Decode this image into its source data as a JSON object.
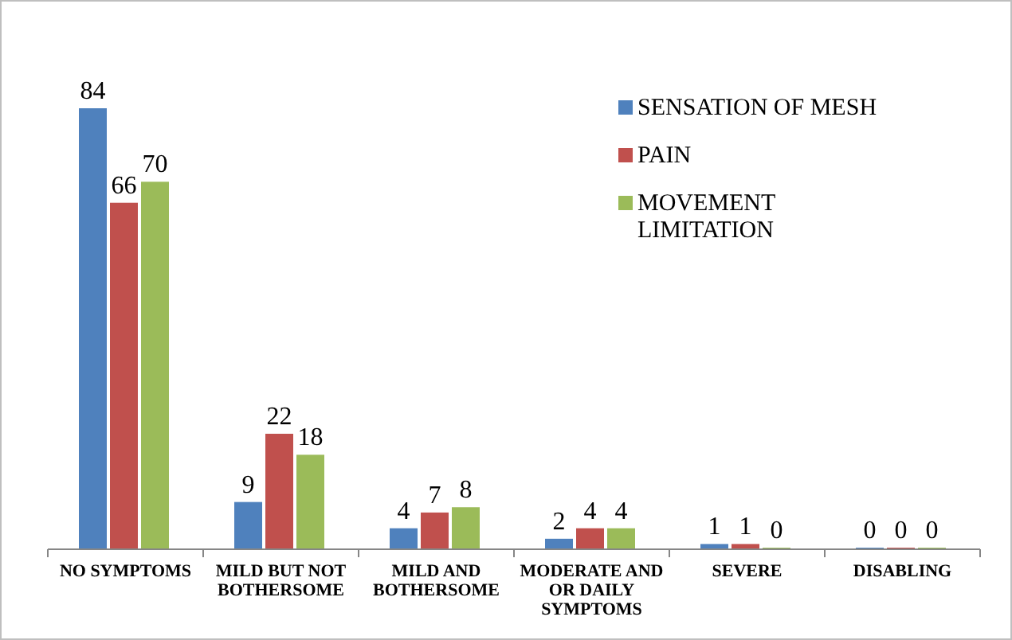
{
  "chart_data": {
    "type": "bar",
    "categories": [
      "NO SYMPTOMS",
      "MILD BUT NOT BOTHERSOME",
      "MILD AND BOTHERSOME",
      "MODERATE AND OR DAILY SYMPTOMS",
      "SEVERE",
      "DISABLING"
    ],
    "series": [
      {
        "name": "SENSATION OF MESH",
        "color": "#4f81bd",
        "values": [
          84,
          9,
          4,
          2,
          1,
          0
        ]
      },
      {
        "name": "PAIN",
        "color": "#c0504d",
        "values": [
          66,
          22,
          7,
          4,
          1,
          0
        ]
      },
      {
        "name": "MOVEMENT LIMITATION",
        "color": "#9bbb59",
        "values": [
          70,
          18,
          8,
          4,
          0,
          0
        ]
      }
    ],
    "data_labels": true,
    "legend": "top right",
    "grid": false
  }
}
